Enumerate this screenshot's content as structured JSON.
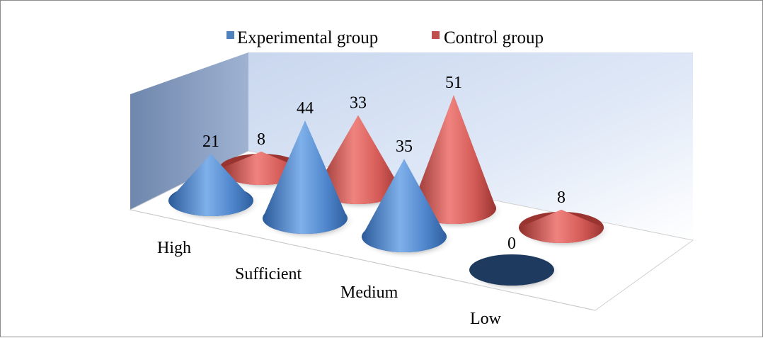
{
  "chart_data": {
    "type": "bar",
    "style": "3d-cone",
    "categories": [
      "High",
      "Sufficient",
      "Medium",
      "Low"
    ],
    "series": [
      {
        "name": "Experimental group",
        "values": [
          21,
          44,
          35,
          0
        ],
        "color": "#4f81bd"
      },
      {
        "name": "Control group",
        "values": [
          8,
          33,
          51,
          8
        ],
        "color": "#c0504d"
      }
    ],
    "data_labels": true,
    "legend": "top",
    "grid": false,
    "ylim": [
      0,
      51
    ]
  }
}
